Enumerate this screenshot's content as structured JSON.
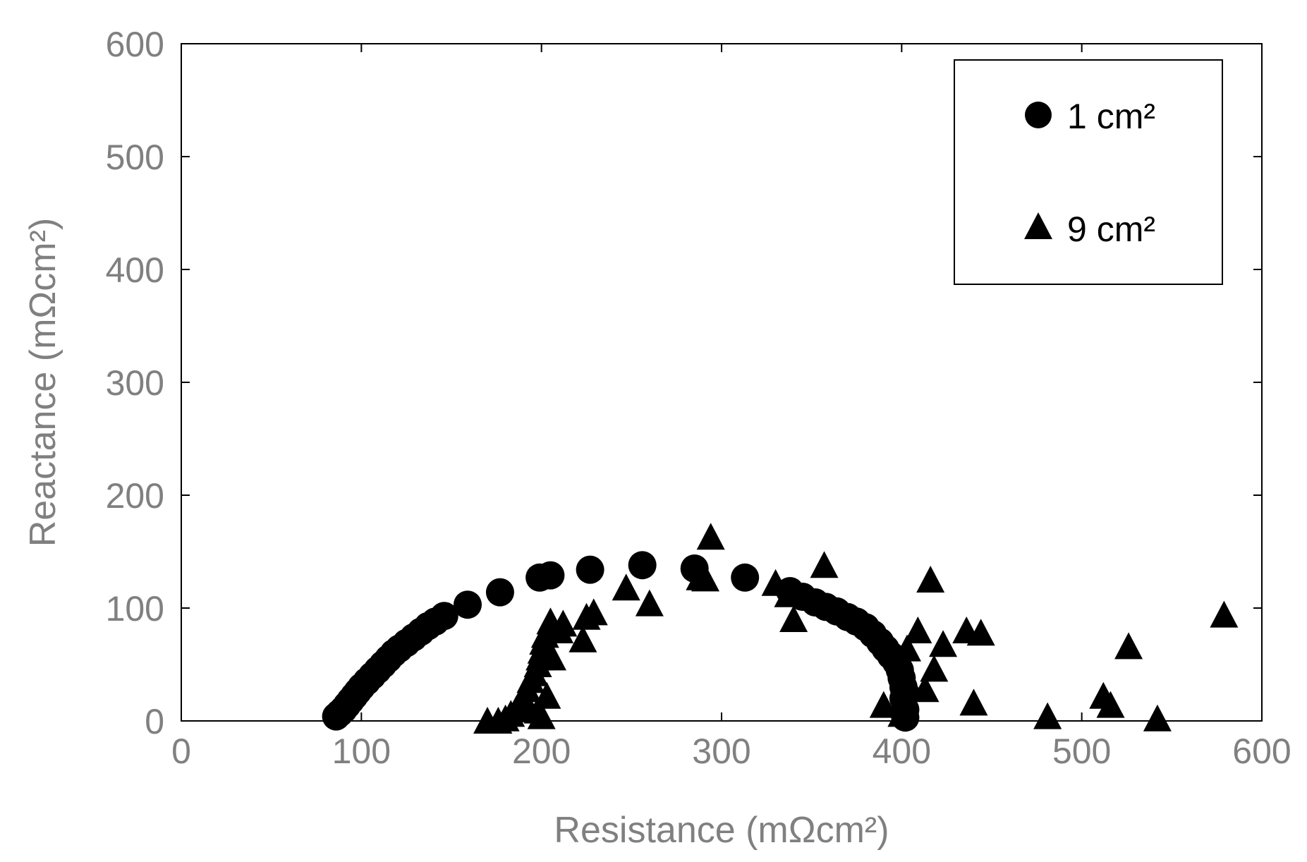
{
  "chart_data": {
    "type": "scatter",
    "xlabel": "Resistance (mΩcm²)",
    "ylabel": "Reactance (mΩcm²)",
    "xlim": [
      0,
      600
    ],
    "ylim": [
      0,
      600
    ],
    "xticks": [
      "0",
      "100",
      "200",
      "300",
      "400",
      "500",
      "600"
    ],
    "yticks": [
      "0",
      "100",
      "200",
      "300",
      "400",
      "500",
      "600"
    ],
    "grid": false,
    "legend_position": "top-right",
    "series": [
      {
        "name": "1 cm²",
        "marker": "circle",
        "color": "#000000",
        "points": [
          [
            86,
            4
          ],
          [
            88,
            7
          ],
          [
            90,
            10
          ],
          [
            92,
            14
          ],
          [
            94,
            18
          ],
          [
            96,
            22
          ],
          [
            98,
            26
          ],
          [
            100,
            30
          ],
          [
            103,
            35
          ],
          [
            106,
            40
          ],
          [
            109,
            45
          ],
          [
            112,
            50
          ],
          [
            115,
            55
          ],
          [
            118,
            60
          ],
          [
            121,
            64
          ],
          [
            125,
            69
          ],
          [
            129,
            74
          ],
          [
            133,
            79
          ],
          [
            137,
            84
          ],
          [
            141,
            88
          ],
          [
            146,
            93
          ],
          [
            159,
            103
          ],
          [
            177,
            114
          ],
          [
            199,
            127
          ],
          [
            205,
            129
          ],
          [
            227,
            134
          ],
          [
            256,
            138
          ],
          [
            285,
            135
          ],
          [
            313,
            127
          ],
          [
            338,
            115
          ],
          [
            345,
            110
          ],
          [
            352,
            105
          ],
          [
            358,
            101
          ],
          [
            364,
            97
          ],
          [
            370,
            92
          ],
          [
            375,
            88
          ],
          [
            380,
            83
          ],
          [
            384,
            77
          ],
          [
            388,
            70
          ],
          [
            391,
            64
          ],
          [
            394,
            58
          ],
          [
            397,
            52
          ],
          [
            399,
            45
          ],
          [
            400,
            38
          ],
          [
            401,
            30
          ],
          [
            401,
            20
          ],
          [
            402,
            10
          ],
          [
            402,
            3
          ]
        ]
      },
      {
        "name": "9 cm²",
        "marker": "triangle",
        "color": "#000000",
        "points": [
          [
            170,
            0
          ],
          [
            176,
            0
          ],
          [
            180,
            2
          ],
          [
            183,
            6
          ],
          [
            186,
            10
          ],
          [
            188,
            15
          ],
          [
            190,
            20
          ],
          [
            192,
            28
          ],
          [
            194,
            36
          ],
          [
            196,
            42
          ],
          [
            198,
            50
          ],
          [
            199,
            56
          ],
          [
            200,
            62
          ],
          [
            201,
            70
          ],
          [
            202,
            76
          ],
          [
            198,
            9
          ],
          [
            200,
            4
          ],
          [
            203,
            22
          ],
          [
            205,
            88
          ],
          [
            206,
            56
          ],
          [
            210,
            80
          ],
          [
            212,
            86
          ],
          [
            223,
            72
          ],
          [
            225,
            92
          ],
          [
            229,
            96
          ],
          [
            247,
            118
          ],
          [
            260,
            104
          ],
          [
            288,
            127
          ],
          [
            291,
            126
          ],
          [
            294,
            163
          ],
          [
            330,
            122
          ],
          [
            337,
            112
          ],
          [
            340,
            90
          ],
          [
            357,
            138
          ],
          [
            390,
            14
          ],
          [
            400,
            6
          ],
          [
            403,
            64
          ],
          [
            405,
            30
          ],
          [
            409,
            80
          ],
          [
            413,
            28
          ],
          [
            416,
            125
          ],
          [
            418,
            46
          ],
          [
            423,
            68
          ],
          [
            436,
            80
          ],
          [
            440,
            16
          ],
          [
            444,
            78
          ],
          [
            481,
            4
          ],
          [
            512,
            22
          ],
          [
            516,
            14
          ],
          [
            526,
            66
          ],
          [
            542,
            2
          ],
          [
            579,
            94
          ]
        ]
      }
    ]
  }
}
